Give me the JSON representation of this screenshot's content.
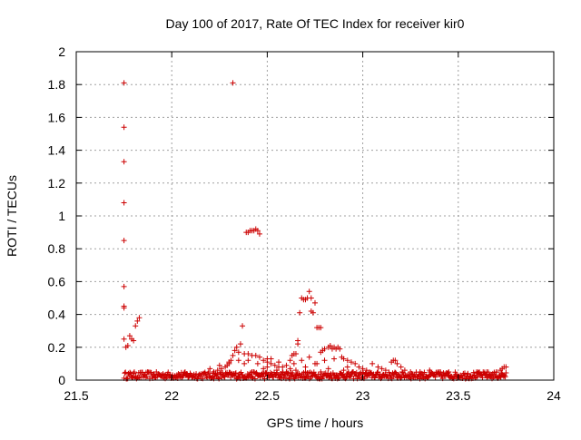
{
  "chart_data": {
    "type": "scatter",
    "title": "Day 100 of 2017, Rate Of TEC Index for receiver kir0",
    "xlabel": "GPS time / hours",
    "ylabel": "ROTI / TECUs",
    "xlim": [
      21.5,
      24
    ],
    "ylim": [
      0,
      2
    ],
    "xticks": [
      21.5,
      22,
      22.5,
      23,
      23.5,
      24
    ],
    "yticks": [
      0,
      0.2,
      0.4,
      0.6,
      0.8,
      1,
      1.2,
      1.4,
      1.6,
      1.8,
      2
    ],
    "xtick_labels": [
      "21.5",
      "22",
      "22.5",
      "23",
      "23.5",
      "24"
    ],
    "ytick_labels": [
      "0",
      "0.2",
      "0.4",
      "0.6",
      "0.8",
      "1",
      "1.2",
      "1.4",
      "1.6",
      "1.8",
      "2"
    ],
    "grid": true,
    "marker": "+",
    "marker_color": "#cc0000",
    "series": [
      {
        "name": "kir0",
        "points": [
          [
            21.75,
            1.81
          ],
          [
            21.75,
            1.54
          ],
          [
            21.75,
            1.33
          ],
          [
            21.75,
            1.08
          ],
          [
            21.75,
            0.85
          ],
          [
            21.75,
            0.57
          ],
          [
            21.75,
            0.45
          ],
          [
            21.75,
            0.44
          ],
          [
            21.75,
            0.25
          ],
          [
            21.76,
            0.2
          ],
          [
            21.77,
            0.21
          ],
          [
            21.78,
            0.27
          ],
          [
            21.79,
            0.25
          ],
          [
            21.8,
            0.24
          ],
          [
            21.81,
            0.33
          ],
          [
            21.82,
            0.36
          ],
          [
            21.83,
            0.38
          ],
          [
            22.32,
            1.81
          ],
          [
            22.39,
            0.9
          ],
          [
            22.4,
            0.9
          ],
          [
            22.41,
            0.91
          ],
          [
            22.42,
            0.91
          ],
          [
            22.43,
            0.91
          ],
          [
            22.44,
            0.92
          ],
          [
            22.45,
            0.91
          ],
          [
            22.46,
            0.89
          ],
          [
            22.37,
            0.33
          ],
          [
            22.36,
            0.22
          ],
          [
            22.34,
            0.2
          ],
          [
            22.33,
            0.18
          ],
          [
            22.32,
            0.15
          ],
          [
            22.31,
            0.12
          ],
          [
            22.3,
            0.1
          ],
          [
            22.29,
            0.09
          ],
          [
            22.28,
            0.08
          ],
          [
            22.26,
            0.07
          ],
          [
            22.24,
            0.06
          ],
          [
            22.22,
            0.05
          ],
          [
            22.35,
            0.17
          ],
          [
            22.38,
            0.16
          ],
          [
            22.4,
            0.16
          ],
          [
            22.42,
            0.15
          ],
          [
            22.44,
            0.15
          ],
          [
            22.46,
            0.14
          ],
          [
            22.48,
            0.12
          ],
          [
            22.5,
            0.11
          ],
          [
            22.52,
            0.1
          ],
          [
            22.54,
            0.09
          ],
          [
            22.56,
            0.08
          ],
          [
            22.58,
            0.08
          ],
          [
            22.6,
            0.09
          ],
          [
            22.62,
            0.12
          ],
          [
            22.63,
            0.15
          ],
          [
            22.64,
            0.16
          ],
          [
            22.65,
            0.16
          ],
          [
            22.66,
            0.22
          ],
          [
            22.66,
            0.24
          ],
          [
            22.67,
            0.41
          ],
          [
            22.68,
            0.5
          ],
          [
            22.69,
            0.49
          ],
          [
            22.7,
            0.49
          ],
          [
            22.71,
            0.5
          ],
          [
            22.72,
            0.54
          ],
          [
            22.73,
            0.5
          ],
          [
            22.73,
            0.42
          ],
          [
            22.74,
            0.41
          ],
          [
            22.75,
            0.47
          ],
          [
            22.76,
            0.32
          ],
          [
            22.77,
            0.32
          ],
          [
            22.78,
            0.32
          ],
          [
            22.78,
            0.17
          ],
          [
            22.79,
            0.18
          ],
          [
            22.8,
            0.19
          ],
          [
            22.82,
            0.2
          ],
          [
            22.83,
            0.21
          ],
          [
            22.84,
            0.19
          ],
          [
            22.85,
            0.2
          ],
          [
            22.86,
            0.19
          ],
          [
            22.87,
            0.2
          ],
          [
            22.88,
            0.19
          ],
          [
            22.89,
            0.14
          ],
          [
            22.9,
            0.13
          ],
          [
            22.92,
            0.12
          ],
          [
            22.94,
            0.11
          ],
          [
            22.96,
            0.1
          ],
          [
            22.98,
            0.08
          ],
          [
            23.0,
            0.07
          ],
          [
            23.05,
            0.1
          ],
          [
            23.1,
            0.07
          ],
          [
            23.15,
            0.11
          ],
          [
            23.16,
            0.12
          ],
          [
            23.17,
            0.12
          ],
          [
            23.18,
            0.1
          ],
          [
            23.2,
            0.08
          ],
          [
            23.22,
            0.06
          ],
          [
            23.72,
            0.06
          ],
          [
            23.73,
            0.07
          ],
          [
            23.74,
            0.08
          ],
          [
            23.75,
            0.08
          ],
          [
            22.4,
            0.12
          ],
          [
            22.45,
            0.1
          ],
          [
            22.5,
            0.08
          ],
          [
            22.55,
            0.06
          ],
          [
            22.6,
            0.05
          ],
          [
            22.65,
            0.06
          ],
          [
            22.7,
            0.08
          ],
          [
            22.75,
            0.1
          ],
          [
            22.8,
            0.12
          ],
          [
            22.85,
            0.13
          ],
          [
            22.42,
            0.05
          ],
          [
            22.48,
            0.07
          ],
          [
            22.52,
            0.13
          ],
          [
            22.56,
            0.11
          ],
          [
            22.62,
            0.07
          ],
          [
            22.68,
            0.12
          ],
          [
            22.72,
            0.14
          ],
          [
            22.76,
            0.1
          ],
          [
            22.82,
            0.07
          ],
          [
            22.9,
            0.06
          ],
          [
            22.95,
            0.05
          ],
          [
            22.2,
            0.07
          ],
          [
            22.25,
            0.09
          ],
          [
            22.3,
            0.11
          ],
          [
            22.35,
            0.12
          ],
          [
            22.38,
            0.1
          ],
          [
            22.5,
            0.13
          ],
          [
            22.58,
            0.05
          ],
          [
            22.64,
            0.1
          ],
          [
            22.7,
            0.05
          ],
          [
            22.78,
            0.05
          ],
          [
            22.92,
            0.08
          ],
          [
            23.02,
            0.06
          ],
          [
            23.08,
            0.08
          ],
          [
            23.12,
            0.06
          ],
          [
            23.25,
            0.05
          ],
          [
            23.3,
            0.05
          ],
          [
            23.35,
            0.06
          ],
          [
            23.4,
            0.05
          ],
          [
            23.45,
            0.05
          ],
          [
            23.55,
            0.04
          ],
          [
            23.6,
            0.04
          ],
          [
            23.65,
            0.05
          ],
          [
            23.7,
            0.05
          ]
        ],
        "baseline_band": {
          "x_start": 21.75,
          "x_end": 23.75,
          "y_min": 0.0,
          "y_max": 0.05
        }
      }
    ]
  }
}
